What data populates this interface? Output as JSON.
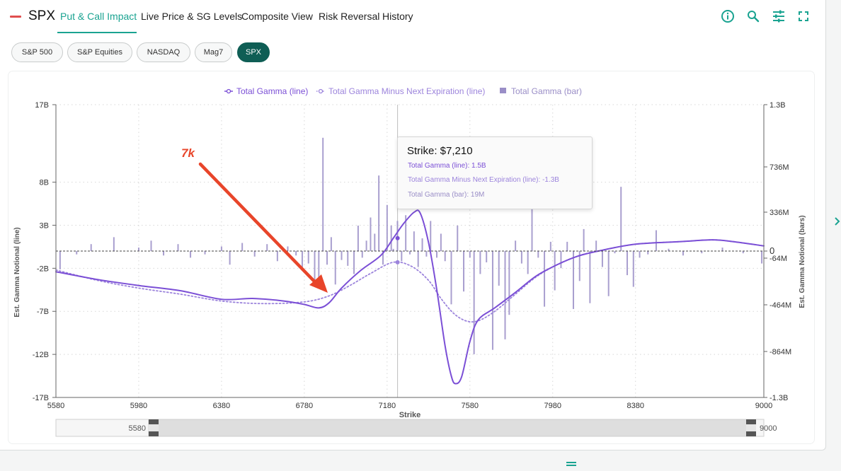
{
  "header": {
    "symbol": "SPX",
    "tabs": [
      {
        "label": "Put & Call Impact",
        "active": true
      },
      {
        "label": "Live Price & SG Levels",
        "active": false
      },
      {
        "label": "Composite View",
        "active": false
      },
      {
        "label": "Risk Reversal",
        "active": false
      },
      {
        "label": "History",
        "active": false
      }
    ],
    "icons": [
      "info-icon",
      "search-icon",
      "settings-sliders-icon",
      "fullscreen-icon"
    ],
    "accent_color": "#1aa391"
  },
  "filters": {
    "pills": [
      {
        "label": "S&P 500",
        "active": false
      },
      {
        "label": "S&P Equities",
        "active": false
      },
      {
        "label": "NASDAQ",
        "active": false
      },
      {
        "label": "Mag7",
        "active": false
      },
      {
        "label": "SPX",
        "active": true
      }
    ],
    "active_color": "#0f5e55"
  },
  "chart_data": {
    "type": "bar+line",
    "legend": {
      "placement": "top-center",
      "items": [
        {
          "label": "Total Gamma (line)",
          "marker": "line-circle",
          "color": "#7b4fd6"
        },
        {
          "label": "Total Gamma Minus Next Expiration (line)",
          "marker": "dotted-line-circle",
          "color": "#9c84dc"
        },
        {
          "label": "Total Gamma (bar)",
          "marker": "square",
          "color": "#9a8ec7"
        }
      ]
    },
    "xlabel": "Strike",
    "ylabel_left": "Est. Gamma Notional (line)",
    "ylabel_right": "Est. Gamma Notional (bars)",
    "x_range": [
      5580,
      9000
    ],
    "x_ticks": [
      5580,
      5980,
      6380,
      6780,
      7180,
      7580,
      7980,
      8380,
      9000
    ],
    "y_left_range": [
      -17,
      17
    ],
    "y_left_ticks": [
      {
        "value": 17,
        "label": "17B"
      },
      {
        "value": 8,
        "label": "8B"
      },
      {
        "value": 3,
        "label": "3B"
      },
      {
        "value": -2,
        "label": "-2B"
      },
      {
        "value": -7,
        "label": "-7B"
      },
      {
        "value": -12,
        "label": "-12B"
      },
      {
        "value": -17,
        "label": "-17B"
      }
    ],
    "y_right_ticks": [
      {
        "value": 1300,
        "label": "1.3B"
      },
      {
        "value": 736,
        "label": "736M"
      },
      {
        "value": 336,
        "label": "336M"
      },
      {
        "value": 0,
        "label": "0"
      },
      {
        "value": -64,
        "label": "-64M"
      },
      {
        "value": -464,
        "label": "-464M"
      },
      {
        "value": -864,
        "label": "-864M"
      },
      {
        "value": -1300,
        "label": "-1.3B"
      }
    ],
    "grid": true,
    "crosshair_x": 7210,
    "series": [
      {
        "name": "Total Gamma (line)",
        "color": "#7b4fd6",
        "style": "solid",
        "points": [
          [
            5580,
            -2.4
          ],
          [
            5780,
            -3.3
          ],
          [
            5980,
            -4.0
          ],
          [
            6180,
            -4.6
          ],
          [
            6380,
            -5.6
          ],
          [
            6530,
            -5.5
          ],
          [
            6680,
            -5.8
          ],
          [
            6780,
            -6.2
          ],
          [
            6850,
            -6.6
          ],
          [
            6900,
            -6.0
          ],
          [
            6960,
            -4.3
          ],
          [
            7050,
            -2.3
          ],
          [
            7150,
            -0.5
          ],
          [
            7210,
            1.5
          ],
          [
            7260,
            3.2
          ],
          [
            7310,
            4.5
          ],
          [
            7340,
            4.4
          ],
          [
            7380,
            1.0
          ],
          [
            7420,
            -4.5
          ],
          [
            7460,
            -11.0
          ],
          [
            7490,
            -14.5
          ],
          [
            7510,
            -15.4
          ],
          [
            7540,
            -14.6
          ],
          [
            7580,
            -10.5
          ],
          [
            7620,
            -8.0
          ],
          [
            7700,
            -6.6
          ],
          [
            7800,
            -4.8
          ],
          [
            7900,
            -2.9
          ],
          [
            8000,
            -1.6
          ],
          [
            8100,
            -0.6
          ],
          [
            8200,
            0.0
          ],
          [
            8380,
            0.8
          ],
          [
            8600,
            1.1
          ],
          [
            8750,
            1.3
          ],
          [
            8850,
            1.1
          ],
          [
            9000,
            0.6
          ]
        ]
      },
      {
        "name": "Total Gamma Minus Next Expiration (line)",
        "color": "#9c84dc",
        "style": "dotted",
        "points": [
          [
            5580,
            -2.2
          ],
          [
            5780,
            -3.4
          ],
          [
            5980,
            -4.3
          ],
          [
            6180,
            -5.0
          ],
          [
            6380,
            -5.8
          ],
          [
            6580,
            -6.1
          ],
          [
            6780,
            -5.9
          ],
          [
            6900,
            -5.2
          ],
          [
            7000,
            -4.0
          ],
          [
            7100,
            -2.6
          ],
          [
            7210,
            -1.3
          ],
          [
            7300,
            -1.8
          ],
          [
            7380,
            -3.4
          ],
          [
            7440,
            -5.5
          ],
          [
            7500,
            -7.2
          ],
          [
            7560,
            -8.1
          ],
          [
            7620,
            -8.1
          ],
          [
            7700,
            -7.0
          ],
          [
            7800,
            -5.0
          ],
          [
            7900,
            -3.0
          ],
          [
            8000,
            -1.6
          ],
          [
            8100,
            -0.6
          ],
          [
            8200,
            0.0
          ],
          [
            8380,
            0.8
          ],
          [
            8600,
            1.1
          ],
          [
            8750,
            1.3
          ],
          [
            8850,
            1.1
          ],
          [
            9000,
            0.6
          ]
        ]
      },
      {
        "name": "Total Gamma (bar)",
        "color": "#9a8ec7",
        "bars": [
          {
            "x": 5600,
            "y": -160
          },
          {
            "x": 5680,
            "y": -30
          },
          {
            "x": 5750,
            "y": 60
          },
          {
            "x": 5860,
            "y": 120
          },
          {
            "x": 5980,
            "y": 30
          },
          {
            "x": 6040,
            "y": 90
          },
          {
            "x": 6100,
            "y": -40
          },
          {
            "x": 6170,
            "y": 60
          },
          {
            "x": 6230,
            "y": -60
          },
          {
            "x": 6300,
            "y": -30
          },
          {
            "x": 6380,
            "y": 40
          },
          {
            "x": 6420,
            "y": -120
          },
          {
            "x": 6480,
            "y": 70
          },
          {
            "x": 6540,
            "y": -50
          },
          {
            "x": 6600,
            "y": 60
          },
          {
            "x": 6650,
            "y": -90
          },
          {
            "x": 6700,
            "y": 40
          },
          {
            "x": 6740,
            "y": -40
          },
          {
            "x": 6770,
            "y": -160
          },
          {
            "x": 6800,
            "y": -110
          },
          {
            "x": 6830,
            "y": -270
          },
          {
            "x": 6850,
            "y": -230
          },
          {
            "x": 6870,
            "y": 1000
          },
          {
            "x": 6890,
            "y": -120
          },
          {
            "x": 6910,
            "y": 120
          },
          {
            "x": 6930,
            "y": -290
          },
          {
            "x": 6960,
            "y": -80
          },
          {
            "x": 6990,
            "y": -130
          },
          {
            "x": 7020,
            "y": -200
          },
          {
            "x": 7040,
            "y": 220
          },
          {
            "x": 7060,
            "y": -60
          },
          {
            "x": 7080,
            "y": 90
          },
          {
            "x": 7100,
            "y": 290
          },
          {
            "x": 7120,
            "y": 150
          },
          {
            "x": 7140,
            "y": 660
          },
          {
            "x": 7160,
            "y": -120
          },
          {
            "x": 7180,
            "y": 400
          },
          {
            "x": 7200,
            "y": 220
          },
          {
            "x": 7210,
            "y": 19
          },
          {
            "x": 7230,
            "y": 260
          },
          {
            "x": 7250,
            "y": -90
          },
          {
            "x": 7270,
            "y": 310
          },
          {
            "x": 7290,
            "y": -30
          },
          {
            "x": 7310,
            "y": 170
          },
          {
            "x": 7330,
            "y": -140
          },
          {
            "x": 7350,
            "y": 110
          },
          {
            "x": 7370,
            "y": -50
          },
          {
            "x": 7390,
            "y": 260
          },
          {
            "x": 7420,
            "y": -60
          },
          {
            "x": 7440,
            "y": 150
          },
          {
            "x": 7460,
            "y": -90
          },
          {
            "x": 7490,
            "y": -460
          },
          {
            "x": 7520,
            "y": 220
          },
          {
            "x": 7550,
            "y": -350
          },
          {
            "x": 7580,
            "y": -60
          },
          {
            "x": 7600,
            "y": -890
          },
          {
            "x": 7630,
            "y": -200
          },
          {
            "x": 7660,
            "y": -100
          },
          {
            "x": 7690,
            "y": -850
          },
          {
            "x": 7720,
            "y": -300
          },
          {
            "x": 7750,
            "y": -760
          },
          {
            "x": 7770,
            "y": -550
          },
          {
            "x": 7800,
            "y": 90
          },
          {
            "x": 7830,
            "y": -110
          },
          {
            "x": 7860,
            "y": -200
          },
          {
            "x": 7880,
            "y": 370
          },
          {
            "x": 7910,
            "y": -60
          },
          {
            "x": 7940,
            "y": -480
          },
          {
            "x": 7970,
            "y": 80
          },
          {
            "x": 7990,
            "y": -340
          },
          {
            "x": 8020,
            "y": -150
          },
          {
            "x": 8050,
            "y": 80
          },
          {
            "x": 8080,
            "y": -500
          },
          {
            "x": 8110,
            "y": -260
          },
          {
            "x": 8130,
            "y": 190
          },
          {
            "x": 8160,
            "y": -450
          },
          {
            "x": 8190,
            "y": 90
          },
          {
            "x": 8220,
            "y": -140
          },
          {
            "x": 8250,
            "y": -390
          },
          {
            "x": 8280,
            "y": -20
          },
          {
            "x": 8310,
            "y": 560
          },
          {
            "x": 8340,
            "y": -210
          },
          {
            "x": 8370,
            "y": -310
          },
          {
            "x": 8400,
            "y": -60
          },
          {
            "x": 8440,
            "y": -30
          },
          {
            "x": 8480,
            "y": 180
          },
          {
            "x": 8540,
            "y": 20
          },
          {
            "x": 8610,
            "y": -40
          },
          {
            "x": 8700,
            "y": -20
          },
          {
            "x": 8800,
            "y": 30
          },
          {
            "x": 8900,
            "y": -20
          },
          {
            "x": 8990,
            "y": -110
          }
        ]
      }
    ],
    "tooltip": {
      "title": "Strike: $7,210",
      "rows": [
        {
          "label": "Total Gamma (line): 1.5B",
          "color": "#7b4fd6"
        },
        {
          "label": "Total Gamma Minus Next Expiration (line): -1.3B",
          "color": "#9c84dc"
        },
        {
          "label": "Total Gamma (bar): 19M",
          "color": "#9a8ec7"
        }
      ]
    },
    "annotation": {
      "label": "7k",
      "color": "#e8452a",
      "points_to_strike": 6920
    },
    "slider": {
      "min_label": "5580",
      "max_label": "9000",
      "start": 5580,
      "end": 9000
    }
  }
}
